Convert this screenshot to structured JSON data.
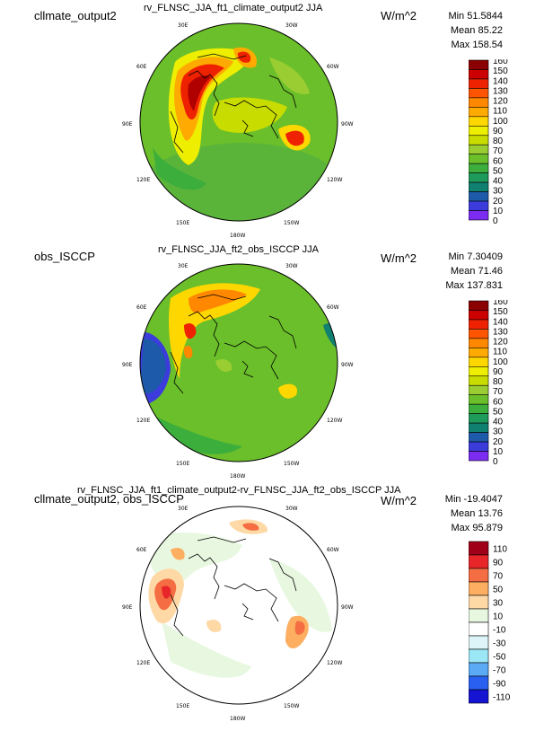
{
  "panels": [
    {
      "left_title": "cllmate_output2",
      "center_title": "rv_FLNSC_JJA_ft1_climate_output2  JJA",
      "units": "W/m^2",
      "stats": {
        "min": "Min 51.5844",
        "mean": "Mean 85.22",
        "max": "Max 158.54"
      },
      "colorbar": {
        "colors": [
          "#8b0000",
          "#cd0000",
          "#ee2200",
          "#ff5500",
          "#ff8800",
          "#ffaa00",
          "#ffd700",
          "#eeee00",
          "#c8dc00",
          "#9acd32",
          "#6bbf2a",
          "#3cae3c",
          "#1e9a5a",
          "#108070",
          "#1e5aaa",
          "#3c3cdc",
          "#7b2cf0"
        ],
        "labels": [
          "160",
          "150",
          "140",
          "130",
          "120",
          "110",
          "100",
          "90",
          "80",
          "70",
          "60",
          "50",
          "40",
          "30",
          "20",
          "10",
          "0"
        ]
      }
    },
    {
      "left_title": "obs_ISCCP",
      "center_title": "rv_FLNSC_JJA_ft2_obs_ISCCP  JJA",
      "units": "W/m^2",
      "stats": {
        "min": "Min 7.30409",
        "mean": "Mean 71.46",
        "max": "Max 137.831"
      },
      "colorbar": {
        "colors": [
          "#8b0000",
          "#cd0000",
          "#ee2200",
          "#ff5500",
          "#ff8800",
          "#ffaa00",
          "#ffd700",
          "#eeee00",
          "#c8dc00",
          "#9acd32",
          "#6bbf2a",
          "#3cae3c",
          "#1e9a5a",
          "#108070",
          "#1e5aaa",
          "#3c3cdc",
          "#7b2cf0"
        ],
        "labels": [
          "160",
          "150",
          "140",
          "130",
          "120",
          "110",
          "100",
          "90",
          "80",
          "70",
          "60",
          "50",
          "40",
          "30",
          "20",
          "10",
          "0"
        ]
      }
    },
    {
      "left_title": "cllmate_output2, obs_ISCCP",
      "center_title": "rv_FLNSC_JJA_ft1_climate_output2-rv_FLNSC_JJA_ft2_obs_ISCCP  JJA",
      "units": "W/m^2",
      "stats": {
        "min": "Min -19.4047",
        "mean": "Mean 13.76",
        "max": "Max 95.879"
      },
      "colorbar": {
        "colors": [
          "#a00018",
          "#e8262a",
          "#f46d43",
          "#fdae61",
          "#fed9a6",
          "#e8f8e0",
          "#ffffff",
          "#ddf4f8",
          "#9be7f5",
          "#5aaaf5",
          "#2a60f0",
          "#1414d2"
        ],
        "labels": [
          "110",
          "90",
          "70",
          "50",
          "30",
          "10",
          "-10",
          "-30",
          "-50",
          "-70",
          "-90",
          "-110"
        ]
      }
    }
  ],
  "longitude_labels": [
    "30E",
    "30W",
    "60E",
    "60W",
    "90E",
    "90W",
    "120E",
    "120W",
    "150E",
    "150W",
    "180W"
  ]
}
